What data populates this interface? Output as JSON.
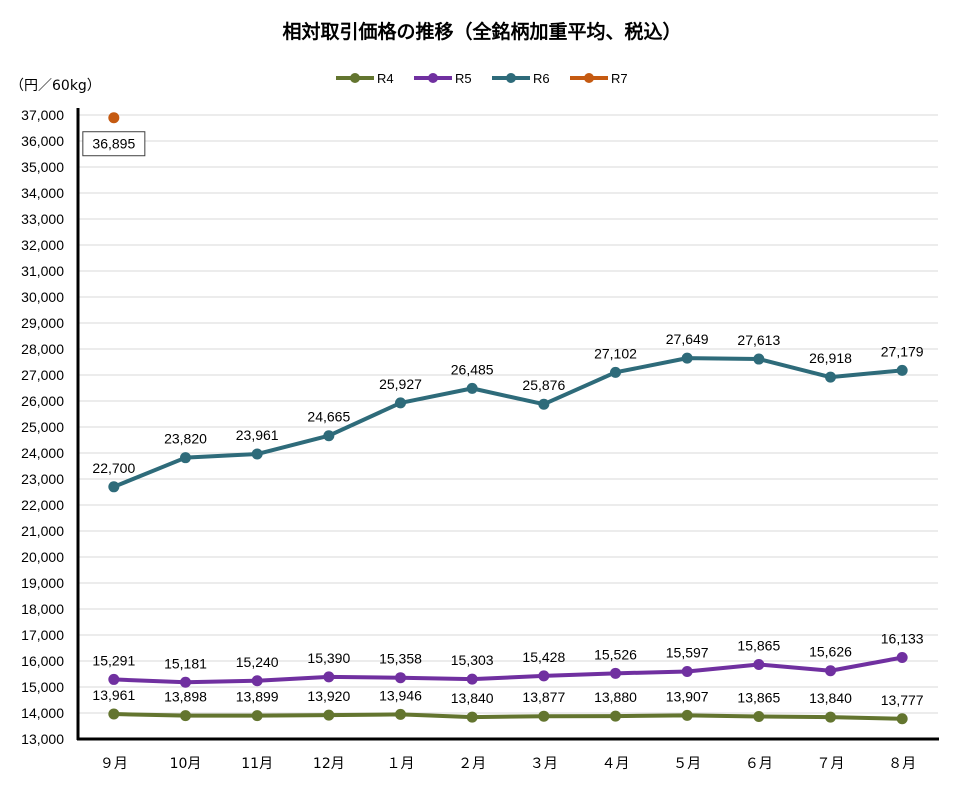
{
  "chart_data": {
    "type": "line",
    "title": "相対取引価格の推移（全銘柄加重平均、税込）",
    "ylabel": "（円／60kg）",
    "xlabel": "",
    "categories": [
      "９月",
      "10月",
      "11月",
      "12月",
      "１月",
      "２月",
      "３月",
      "４月",
      "５月",
      "６月",
      "７月",
      "８月"
    ],
    "ylim": [
      13000,
      37000
    ],
    "ytick_step": 1000,
    "grid": true,
    "legend_position": "top-center",
    "series": [
      {
        "name": "R4",
        "color": "#63752f",
        "values": [
          13961,
          13898,
          13899,
          13920,
          13946,
          13840,
          13877,
          13880,
          13907,
          13865,
          13840,
          13777
        ],
        "label_position": "above"
      },
      {
        "name": "R5",
        "color": "#7030a0",
        "values": [
          15291,
          15181,
          15240,
          15390,
          15358,
          15303,
          15428,
          15526,
          15597,
          15865,
          15626,
          16133
        ],
        "label_position": "above"
      },
      {
        "name": "R6",
        "color": "#2e6b7a",
        "values": [
          22700,
          23820,
          23961,
          24665,
          25927,
          26485,
          25876,
          27102,
          27649,
          27613,
          26918,
          27179
        ],
        "label_position": "above"
      },
      {
        "name": "R7",
        "color": "#c55a11",
        "values": [
          36895,
          null,
          null,
          null,
          null,
          null,
          null,
          null,
          null,
          null,
          null,
          null
        ],
        "label_position": "below-boxed"
      }
    ]
  }
}
